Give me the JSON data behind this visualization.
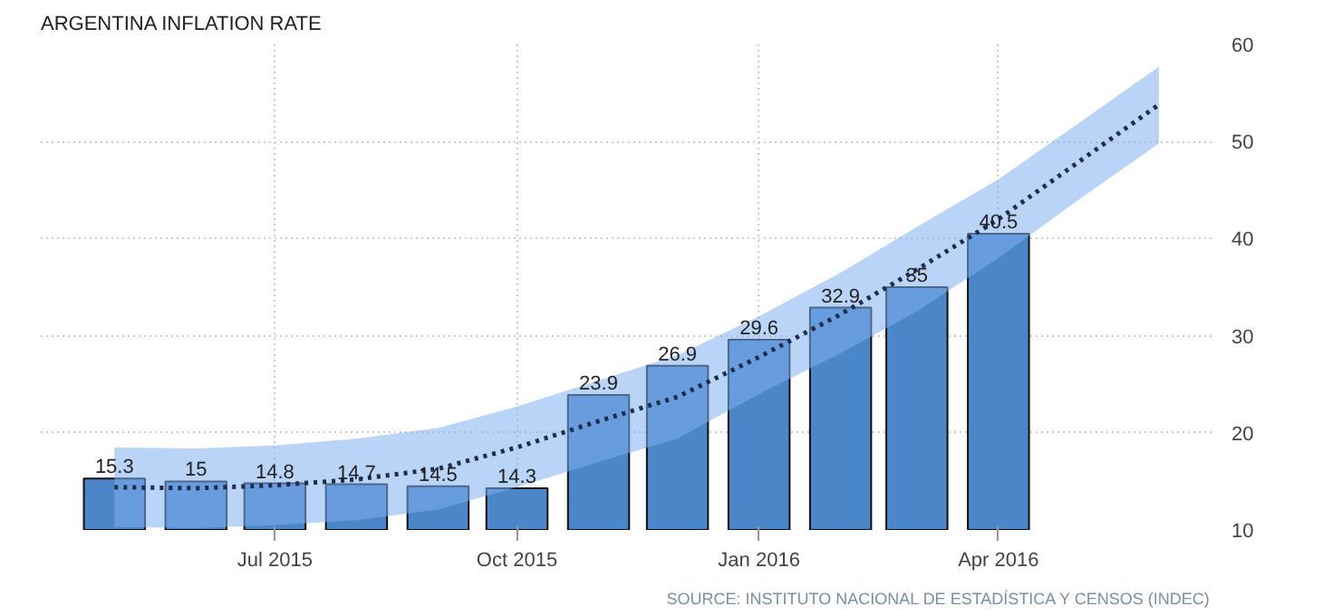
{
  "chart_data": {
    "type": "bar",
    "title": "ARGENTINA INFLATION RATE",
    "x": [
      "2015-05",
      "2015-06",
      "2015-07",
      "2015-08",
      "2015-09",
      "2015-10",
      "2015-11",
      "2015-12",
      "2016-01",
      "2016-02",
      "2016-03",
      "2016-04"
    ],
    "series": [
      {
        "color": "#4a86c8",
        "values": [
          15.3,
          15,
          14.8,
          14.7,
          14.5,
          14.3,
          23.9,
          26.9,
          29.6,
          32.9,
          35,
          40.5
        ],
        "value_labels": [
          "15.3",
          "15",
          "14.8",
          "14.7",
          "14.5",
          "14.3",
          "23.9",
          "26.9",
          "29.6",
          "32.9",
          "35",
          "40.5"
        ]
      },
      {
        "type": "line",
        "color": "#1f2d4a",
        "line_style": "dotted",
        "x": [
          "2015-05",
          "2015-06",
          "2015-07",
          "2015-08",
          "2015-09",
          "2015-10",
          "2015-11",
          "2015-12",
          "2016-01",
          "2016-02",
          "2016-03",
          "2016-04",
          "2016-05",
          "2016-06"
        ],
        "values": [
          14.4,
          14.3,
          14.6,
          15.2,
          16.3,
          18.5,
          21.2,
          23.7,
          27.8,
          32.2,
          36.8,
          42.0,
          47.8,
          53.8
        ],
        "upper": [
          18.5,
          18.4,
          18.7,
          19.4,
          20.5,
          22.7,
          25.4,
          28.0,
          32.0,
          36.5,
          41.2,
          46.1,
          51.8,
          57.7
        ],
        "lower": [
          10.3,
          10.2,
          10.5,
          11.0,
          12.1,
          14.4,
          17.0,
          19.4,
          24.0,
          28.2,
          32.5,
          38.0,
          43.9,
          49.8
        ]
      }
    ],
    "xlim": [
      "2015-04-03",
      "2016-06-21"
    ],
    "xticks": [
      {
        "value": "2015-07",
        "label": "Jul 2015"
      },
      {
        "value": "2015-10",
        "label": "Oct 2015"
      },
      {
        "value": "2016-01",
        "label": "Jan 2016"
      },
      {
        "value": "2016-04",
        "label": "Apr 2016"
      }
    ],
    "ylim": [
      10,
      60
    ],
    "yticks": [
      10,
      20,
      30,
      40,
      50,
      60
    ],
    "grid": true,
    "annotations": [
      "SOURCE: INSTITUTO NACIONAL DE ESTADÍSTICA Y CENSOS (INDEC)"
    ]
  }
}
